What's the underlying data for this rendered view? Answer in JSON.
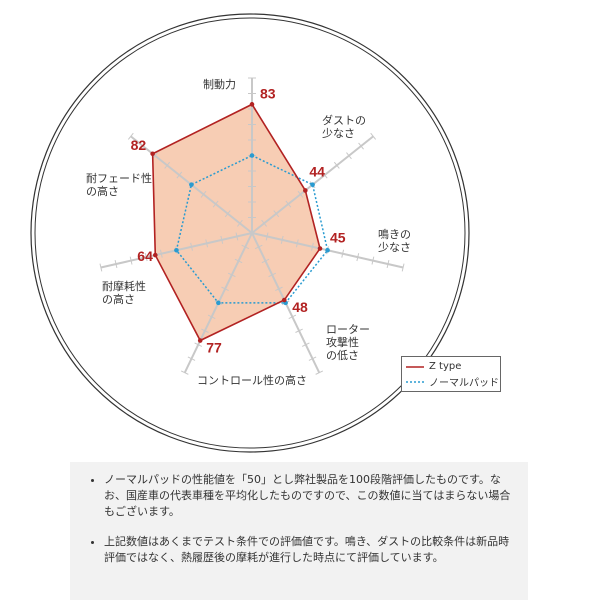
{
  "chart_data": {
    "type": "radar",
    "axes": [
      "制動力",
      "ダストの少なさ",
      "鳴きの少なさ",
      "ローター攻撃性の低さ",
      "コントロール性の高さ",
      "耐摩耗性の高さ",
      "耐フェード性の高さ"
    ],
    "axis_labels": [
      [
        "制動力"
      ],
      [
        "ダストの",
        "少なさ"
      ],
      [
        "鳴きの",
        "少なさ"
      ],
      [
        "ローター",
        "攻撃性",
        "の低さ"
      ],
      [
        "コントロール性の高さ"
      ],
      [
        "耐摩耗性",
        "の高さ"
      ],
      [
        "耐フェード性",
        "の高さ"
      ]
    ],
    "range": [
      0,
      100
    ],
    "series": [
      {
        "name": "Z type",
        "values": [
          83,
          44,
          45,
          48,
          77,
          64,
          82
        ],
        "color": "#b22222",
        "fill": "#f7cdb4",
        "labels": [
          "83",
          "44",
          "45",
          "48",
          "77",
          "64",
          "82"
        ]
      },
      {
        "name": "ノーマルパッド",
        "values": [
          50,
          50,
          50,
          50,
          50,
          50,
          50
        ],
        "color": "#2a9bd0"
      }
    ],
    "legend": "bottom-right"
  },
  "notes": [
    "ノーマルパッドの性能値を「50」とし弊社製品を100段階評価したものです。なお、国産車の代表車種を平均化したものですので、この数値に当てはまらない場合もございます。",
    "上記数値はあくまでテスト条件での評価値です。鳴き、ダストの比較条件は新品時評価ではなく、熱履歴後の摩耗が進行した時点にて評価しています。"
  ]
}
